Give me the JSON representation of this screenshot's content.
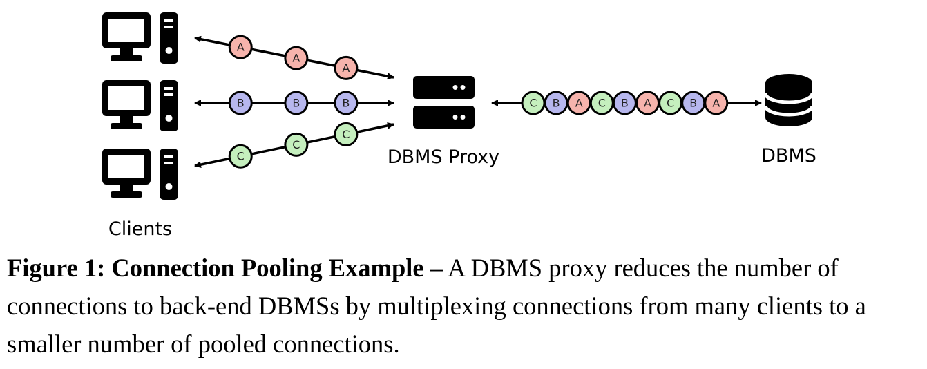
{
  "labels": {
    "clients": "Clients",
    "proxy": "DBMS Proxy",
    "dbms": "DBMS"
  },
  "client_links": [
    {
      "tokens": [
        "A",
        "A",
        "A"
      ]
    },
    {
      "tokens": [
        "B",
        "B",
        "B"
      ]
    },
    {
      "tokens": [
        "C",
        "C",
        "C"
      ]
    }
  ],
  "pooled_link": {
    "tokens": [
      "C",
      "B",
      "A",
      "C",
      "B",
      "A",
      "C",
      "B",
      "A"
    ]
  },
  "token_colors": {
    "A": "#f6b3ac",
    "B": "#b7b7ee",
    "C": "#c5efbe"
  },
  "icons": {
    "clients": [
      "desktop-computer-icon",
      "desktop-computer-icon",
      "desktop-computer-icon"
    ],
    "proxy": "server-icon",
    "dbms": "database-icon"
  },
  "caption": {
    "title": "Figure 1: Connection Pooling Example",
    "separator": " – ",
    "text": "A DBMS proxy reduces the number of connections to back-end DBMSs by multiplexing connections from many clients to a smaller number of pooled connections."
  }
}
